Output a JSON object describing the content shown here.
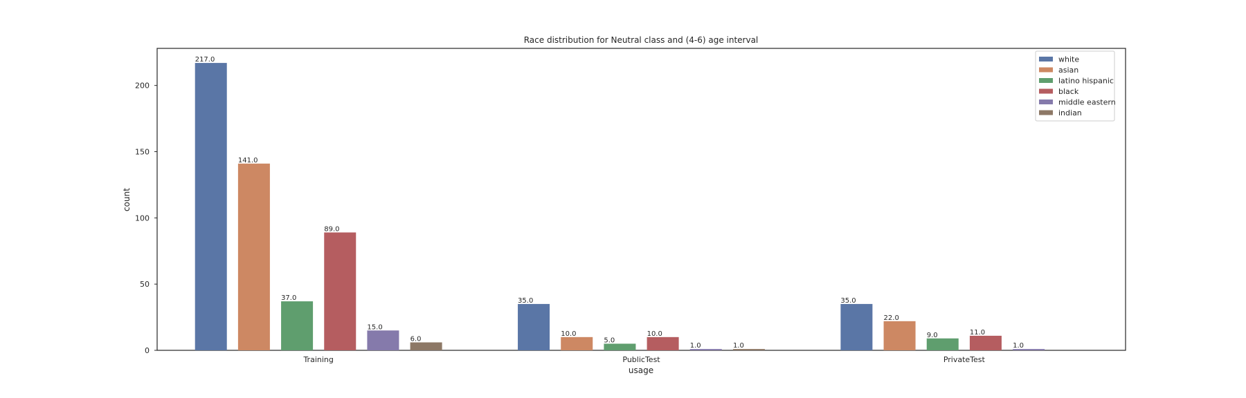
{
  "chart_data": {
    "type": "bar",
    "title": "Race distribution for Neutral class and (4-6) age interval",
    "xlabel": "usage",
    "ylabel": "count",
    "categories": [
      "Training",
      "PublicTest",
      "PrivateTest"
    ],
    "ylim": [
      0,
      228
    ],
    "yticks": [
      0,
      50,
      100,
      150,
      200
    ],
    "grid": false,
    "legend_position": "top-right",
    "series": [
      {
        "name": "white",
        "color": "#5a76a6",
        "values": [
          217.0,
          35.0,
          35.0
        ],
        "labels": [
          "217.0",
          "35.0",
          "35.0"
        ]
      },
      {
        "name": "asian",
        "color": "#cd8863",
        "values": [
          141.0,
          10.0,
          22.0
        ],
        "labels": [
          "141.0",
          "10.0",
          "22.0"
        ]
      },
      {
        "name": "latino hispanic",
        "color": "#5f9e6e",
        "values": [
          37.0,
          5.0,
          9.0
        ],
        "labels": [
          "37.0",
          "5.0",
          "9.0"
        ]
      },
      {
        "name": "black",
        "color": "#b55d60",
        "values": [
          89.0,
          10.0,
          11.0
        ],
        "labels": [
          "89.0",
          "10.0",
          "11.0"
        ]
      },
      {
        "name": "middle eastern",
        "color": "#857aab",
        "values": [
          15.0,
          1.0,
          1.0
        ],
        "labels": [
          "15.0",
          "1.0",
          "1.0"
        ]
      },
      {
        "name": "indian",
        "color": "#8d7866",
        "values": [
          6.0,
          1.0,
          null
        ],
        "labels": [
          "6.0",
          "1.0",
          ""
        ]
      }
    ]
  }
}
